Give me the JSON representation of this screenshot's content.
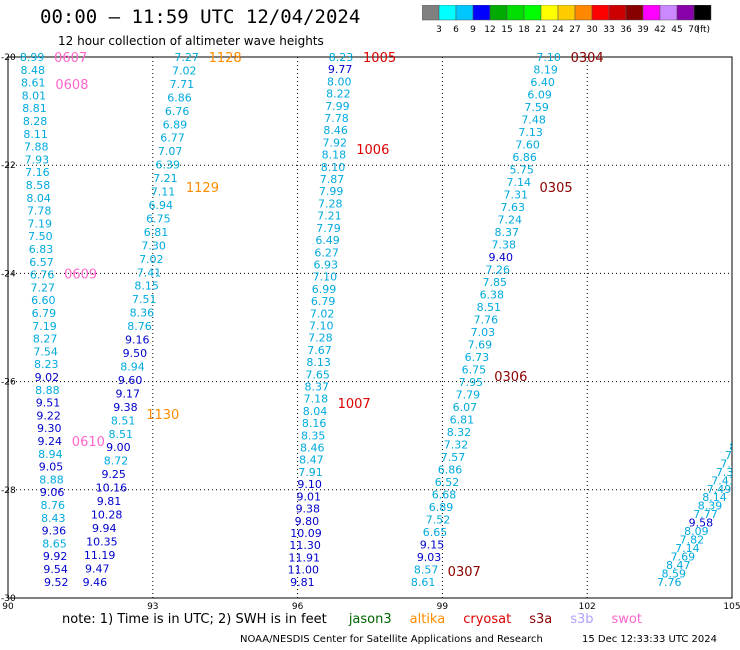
{
  "header": {
    "title": "00:00 – 11:59 UTC 12/04/2024",
    "subtitle": "12 hour collection of altimeter wave heights"
  },
  "legend": {
    "ticks": [
      "3",
      "6",
      "9",
      "12",
      "15",
      "18",
      "21",
      "24",
      "27",
      "30",
      "33",
      "36",
      "39",
      "42",
      "45",
      "70"
    ],
    "unit": "(ft)",
    "colors": [
      "#808080",
      "#00ffff",
      "#00c8ff",
      "#0000ff",
      "#00aa00",
      "#00dd00",
      "#00ff00",
      "#ffff00",
      "#ffcc00",
      "#ff8800",
      "#ff0000",
      "#cc0000",
      "#880000",
      "#ff00ff",
      "#cc88ff",
      "#8800aa",
      "#000000"
    ]
  },
  "footer": {
    "note_prefix": "note:  1) Time is in UTC; 2) SWH is in feet",
    "satellites": [
      {
        "name": "jason3",
        "color": "#006400"
      },
      {
        "name": "altika",
        "color": "#ff8c00"
      },
      {
        "name": "cryosat",
        "color": "#dd0000"
      },
      {
        "name": "s3a",
        "color": "#8b0000"
      },
      {
        "name": "s3b",
        "color": "#b0a0ff"
      },
      {
        "name": "swot",
        "color": "#ff66cc"
      }
    ],
    "credit": "NOAA/NESDIS Center for Satellite Applications and Research",
    "timestamp": "15 Dec 12:33:33 UTC 2024"
  },
  "chart_data": {
    "type": "scatter",
    "title": "00:00 – 11:59 UTC 12/04/2024",
    "xlim": [
      90,
      105
    ],
    "ylim": [
      -30,
      -20
    ],
    "x_ticks": [
      "90",
      "93",
      "96",
      "99",
      "102",
      "105"
    ],
    "y_ticks": [
      "-20",
      "-22",
      "-24",
      "-26",
      "-28",
      "-30"
    ],
    "grid": true,
    "tracks": [
      {
        "satellite": "swot",
        "color": "#ff66cc",
        "labels": [
          [
            "0607",
            -20.0
          ],
          [
            "0608",
            -20.5
          ],
          [
            "0609",
            -24.0
          ],
          [
            "0610",
            -27.1
          ]
        ],
        "start": [
          90.5,
          -20.0
        ],
        "end": [
          91.0,
          -29.7
        ],
        "values": [
          "8.99",
          "8.48",
          "8.61",
          "8.01",
          "8.81",
          "8.28",
          "8.11",
          "7.88",
          "7.93",
          "7.16",
          "8.58",
          "8.04",
          "7.78",
          "7.19",
          "7.50",
          "6.83",
          "6.57",
          "6.76",
          "7.27",
          "6.60",
          "6.79",
          "7.19",
          "8.27",
          "7.54",
          "8.23",
          "9.02",
          "8.88",
          "9.51",
          "9.22",
          "9.30",
          "9.24",
          "8.94",
          "9.05",
          "8.88",
          "9.06",
          "8.76",
          "8.43",
          "9.36",
          "8.65",
          "9.92",
          "9.54",
          "9.52"
        ]
      },
      {
        "satellite": "altika",
        "color": "#ff8c00",
        "labels": [
          [
            "1128",
            -20.0
          ],
          [
            "1129",
            -22.4
          ],
          [
            "1130",
            -26.6
          ]
        ],
        "start": [
          93.7,
          -20.0
        ],
        "end": [
          91.8,
          -29.7
        ],
        "values": [
          "7.27",
          "7.02",
          "7.71",
          "6.86",
          "6.76",
          "6.89",
          "6.77",
          "7.07",
          "6.39",
          "7.21",
          "7.11",
          "6.94",
          "6.75",
          "6.81",
          "7.30",
          "7.02",
          "7.41",
          "8.15",
          "7.51",
          "8.36",
          "8.76",
          "9.16",
          "9.50",
          "8.94",
          "9.60",
          "9.17",
          "9.38",
          "8.51",
          "8.51",
          "9.00",
          "8.72",
          "9.25",
          "10.16",
          "9.81",
          "10.28",
          "9.94",
          "10.35",
          "11.19",
          "9.47",
          "9.46"
        ]
      },
      {
        "satellite": "cryosat",
        "color": "#dd0000",
        "labels": [
          [
            "1005",
            -20.0
          ],
          [
            "1006",
            -21.7
          ],
          [
            "1007",
            -26.4
          ]
        ],
        "start": [
          96.9,
          -20.0
        ],
        "end": [
          96.1,
          -29.7
        ],
        "values": [
          "8.23",
          "9.77",
          "8.00",
          "8.22",
          "7.99",
          "7.78",
          "8.46",
          "7.92",
          "8.18",
          "8.10",
          "7.87",
          "7.99",
          "7.28",
          "7.21",
          "7.79",
          "6.49",
          "6.27",
          "6.93",
          "7.10",
          "6.99",
          "6.79",
          "7.02",
          "7.10",
          "7.28",
          "7.67",
          "8.13",
          "7.65",
          "8.37",
          "7.18",
          "8.04",
          "8.16",
          "8.35",
          "8.46",
          "8.47",
          "7.91",
          "9.10",
          "9.01",
          "9.38",
          "9.80",
          "10.09",
          "11.30",
          "11.91",
          "11.00",
          "9.81"
        ]
      },
      {
        "satellite": "s3a",
        "color": "#8b0000",
        "labels": [
          [
            "0304",
            -20.0
          ],
          [
            "0305",
            -22.4
          ],
          [
            "0306",
            -25.9
          ],
          [
            "0307",
            -29.5
          ]
        ],
        "start": [
          101.2,
          -20.0
        ],
        "end": [
          98.6,
          -29.7
        ],
        "values": [
          "7.10",
          "8.19",
          "6.40",
          "6.09",
          "7.59",
          "7.48",
          "7.13",
          "7.60",
          "6.86",
          "5.75",
          "7.14",
          "7.31",
          "7.63",
          "7.24",
          "8.37",
          "7.38",
          "9.40",
          "7.26",
          "7.85",
          "6.38",
          "8.51",
          "7.76",
          "7.03",
          "7.69",
          "6.73",
          "6.75",
          "7.95",
          "7.79",
          "6.07",
          "6.81",
          "8.32",
          "7.32",
          "7.57",
          "6.86",
          "6.52",
          "6.68",
          "6.89",
          "7.52",
          "6.65",
          "9.15",
          "9.03",
          "8.57",
          "8.61"
        ]
      },
      {
        "satellite": "s3a",
        "color": "#8b0000",
        "labels": [],
        "start": [
          105.2,
          -27.2
        ],
        "end": [
          103.7,
          -29.7
        ],
        "values": [
          "8.82",
          "7.93",
          "7.51",
          "7.36",
          "7.41",
          "7.49",
          "8.14",
          "8.39",
          "7.77",
          "9.58",
          "8.09",
          "7.82",
          "7.14",
          "7.69",
          "8.47",
          "8.59",
          "7.76"
        ]
      }
    ]
  }
}
